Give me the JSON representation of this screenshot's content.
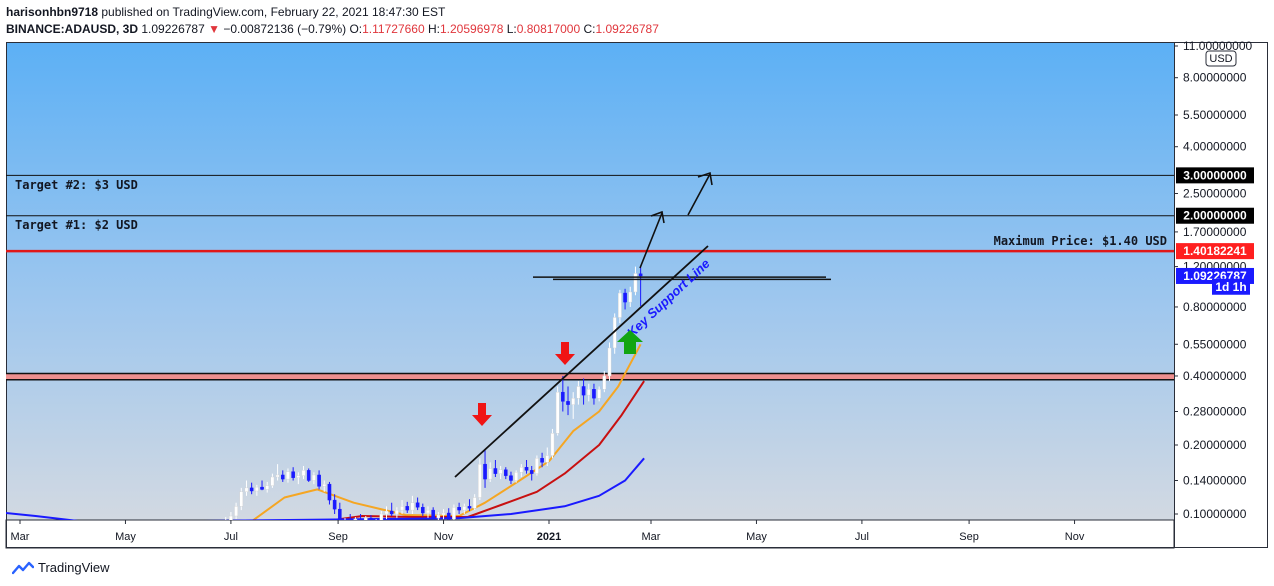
{
  "header": {
    "line1": {
      "user": "harisonhbn9718",
      "rest": " published on TradingView.com, February 22, 2021 18:47:30 EST"
    },
    "line2": {
      "symbol": "BINANCE:ADAUSD, 3D",
      "last": "1.09226787",
      "change": "−0.00872136 (−0.79%)",
      "o_label": "O:",
      "o": "1.11727660",
      "h_label": "H:",
      "h": "1.20596978",
      "l_label": "L:",
      "l": "0.80817000",
      "c_label": "C:",
      "c": "1.09226787"
    }
  },
  "footer": {
    "brand": "TradingView",
    "logo_icon": "tradingview-logo-icon"
  },
  "colors": {
    "red": "#e0363c",
    "blue": "#1a1aff",
    "orange": "#f5a623",
    "darkred": "#c81010",
    "green": "#16a016",
    "bgTop": "#60b2f2",
    "bgBottom": "#cfd8e4"
  },
  "chart_data": {
    "type": "candlestick",
    "y_scale": "log",
    "currency": "USD",
    "y_ticks": [
      "11.00000000",
      "8.00000000",
      "5.50000000",
      "4.00000000",
      "2.50000000",
      "1.70000000",
      "1.20000000",
      "0.80000000",
      "0.55000000",
      "0.40000000",
      "0.28000000",
      "0.20000000",
      "0.14000000",
      "0.10000000"
    ],
    "y_tick_values": [
      11,
      8,
      5.5,
      4,
      2.5,
      1.7,
      1.2,
      0.8,
      0.55,
      0.4,
      0.28,
      0.2,
      0.14,
      0.1
    ],
    "x_ticks": [
      "Mar",
      "May",
      "Jul",
      "Sep",
      "Nov",
      "2021",
      "Mar",
      "May",
      "Jul",
      "Sep",
      "Nov"
    ],
    "x_tick_dates": [
      "2020-03-01",
      "2020-05-01",
      "2020-07-01",
      "2020-09-01",
      "2020-11-01",
      "2021-01-01",
      "2021-03-01",
      "2021-05-01",
      "2021-07-01",
      "2021-09-01",
      "2021-11-01"
    ],
    "price_badges": [
      {
        "label": "3.00000000",
        "value": 3.0,
        "style": "black"
      },
      {
        "label": "2.00000000",
        "value": 2.0,
        "style": "black"
      },
      {
        "label": "1.40182241",
        "value": 1.40182241,
        "style": "red"
      },
      {
        "label": "1.09226787",
        "value": 1.09226787,
        "style": "blue"
      },
      {
        "label": "1d 1h",
        "value": 0.98,
        "style": "blue"
      }
    ],
    "annotations": [
      {
        "text": "Target #2: $3 USD",
        "value": 3.0
      },
      {
        "text": "Target #1: $2 USD",
        "value": 2.0
      },
      {
        "text": "Maximum Price: $1.40 USD",
        "value": 1.4
      },
      {
        "text": "Key Support Line"
      }
    ],
    "support_zone": [
      0.385,
      0.41
    ],
    "resistance_lines": [
      1.08,
      1.055
    ],
    "candles": [
      {
        "d": "2020-06-28",
        "o": 0.088,
        "h": 0.097,
        "l": 0.085,
        "c": 0.093
      },
      {
        "d": "2020-07-01",
        "o": 0.093,
        "h": 0.102,
        "l": 0.09,
        "c": 0.098
      },
      {
        "d": "2020-07-04",
        "o": 0.098,
        "h": 0.112,
        "l": 0.095,
        "c": 0.108
      },
      {
        "d": "2020-07-07",
        "o": 0.108,
        "h": 0.13,
        "l": 0.104,
        "c": 0.125
      },
      {
        "d": "2020-07-10",
        "o": 0.125,
        "h": 0.14,
        "l": 0.12,
        "c": 0.13
      },
      {
        "d": "2020-07-13",
        "o": 0.13,
        "h": 0.137,
        "l": 0.122,
        "c": 0.126
      },
      {
        "d": "2020-07-16",
        "o": 0.126,
        "h": 0.134,
        "l": 0.12,
        "c": 0.131
      },
      {
        "d": "2020-07-19",
        "o": 0.131,
        "h": 0.14,
        "l": 0.127,
        "c": 0.128
      },
      {
        "d": "2020-07-22",
        "o": 0.128,
        "h": 0.138,
        "l": 0.124,
        "c": 0.133
      },
      {
        "d": "2020-07-25",
        "o": 0.133,
        "h": 0.15,
        "l": 0.13,
        "c": 0.145
      },
      {
        "d": "2020-07-28",
        "o": 0.145,
        "h": 0.165,
        "l": 0.14,
        "c": 0.148
      },
      {
        "d": "2020-07-31",
        "o": 0.148,
        "h": 0.155,
        "l": 0.138,
        "c": 0.142
      },
      {
        "d": "2020-08-03",
        "o": 0.142,
        "h": 0.158,
        "l": 0.137,
        "c": 0.153
      },
      {
        "d": "2020-08-06",
        "o": 0.153,
        "h": 0.16,
        "l": 0.14,
        "c": 0.144
      },
      {
        "d": "2020-08-09",
        "o": 0.144,
        "h": 0.152,
        "l": 0.135,
        "c": 0.147
      },
      {
        "d": "2020-08-12",
        "o": 0.147,
        "h": 0.162,
        "l": 0.142,
        "c": 0.155
      },
      {
        "d": "2020-08-15",
        "o": 0.155,
        "h": 0.158,
        "l": 0.138,
        "c": 0.14
      },
      {
        "d": "2020-08-18",
        "o": 0.14,
        "h": 0.152,
        "l": 0.135,
        "c": 0.148
      },
      {
        "d": "2020-08-21",
        "o": 0.148,
        "h": 0.155,
        "l": 0.128,
        "c": 0.132
      },
      {
        "d": "2020-08-24",
        "o": 0.132,
        "h": 0.14,
        "l": 0.125,
        "c": 0.135
      },
      {
        "d": "2020-08-27",
        "o": 0.135,
        "h": 0.138,
        "l": 0.11,
        "c": 0.115
      },
      {
        "d": "2020-08-30",
        "o": 0.115,
        "h": 0.122,
        "l": 0.1,
        "c": 0.105
      },
      {
        "d": "2020-09-02",
        "o": 0.105,
        "h": 0.112,
        "l": 0.082,
        "c": 0.088
      },
      {
        "d": "2020-09-05",
        "o": 0.088,
        "h": 0.096,
        "l": 0.078,
        "c": 0.093
      },
      {
        "d": "2020-09-08",
        "o": 0.093,
        "h": 0.1,
        "l": 0.086,
        "c": 0.09
      },
      {
        "d": "2020-09-11",
        "o": 0.09,
        "h": 0.097,
        "l": 0.087,
        "c": 0.095
      },
      {
        "d": "2020-09-14",
        "o": 0.095,
        "h": 0.1,
        "l": 0.089,
        "c": 0.092
      },
      {
        "d": "2020-09-17",
        "o": 0.092,
        "h": 0.098,
        "l": 0.088,
        "c": 0.096
      },
      {
        "d": "2020-09-20",
        "o": 0.096,
        "h": 0.099,
        "l": 0.088,
        "c": 0.09
      },
      {
        "d": "2020-09-23",
        "o": 0.09,
        "h": 0.095,
        "l": 0.085,
        "c": 0.093
      },
      {
        "d": "2020-09-26",
        "o": 0.093,
        "h": 0.103,
        "l": 0.091,
        "c": 0.1
      },
      {
        "d": "2020-09-29",
        "o": 0.1,
        "h": 0.108,
        "l": 0.095,
        "c": 0.103
      },
      {
        "d": "2020-10-02",
        "o": 0.103,
        "h": 0.112,
        "l": 0.098,
        "c": 0.1
      },
      {
        "d": "2020-10-05",
        "o": 0.1,
        "h": 0.107,
        "l": 0.096,
        "c": 0.104
      },
      {
        "d": "2020-10-08",
        "o": 0.104,
        "h": 0.115,
        "l": 0.1,
        "c": 0.108
      },
      {
        "d": "2020-10-11",
        "o": 0.108,
        "h": 0.113,
        "l": 0.101,
        "c": 0.104
      },
      {
        "d": "2020-10-14",
        "o": 0.104,
        "h": 0.12,
        "l": 0.1,
        "c": 0.112
      },
      {
        "d": "2020-10-17",
        "o": 0.112,
        "h": 0.118,
        "l": 0.104,
        "c": 0.107
      },
      {
        "d": "2020-10-20",
        "o": 0.107,
        "h": 0.111,
        "l": 0.098,
        "c": 0.101
      },
      {
        "d": "2020-10-23",
        "o": 0.101,
        "h": 0.108,
        "l": 0.096,
        "c": 0.104
      },
      {
        "d": "2020-10-26",
        "o": 0.104,
        "h": 0.107,
        "l": 0.093,
        "c": 0.096
      },
      {
        "d": "2020-10-29",
        "o": 0.096,
        "h": 0.102,
        "l": 0.092,
        "c": 0.099
      },
      {
        "d": "2020-11-01",
        "o": 0.099,
        "h": 0.105,
        "l": 0.095,
        "c": 0.101
      },
      {
        "d": "2020-11-04",
        "o": 0.101,
        "h": 0.106,
        "l": 0.093,
        "c": 0.095
      },
      {
        "d": "2020-11-07",
        "o": 0.095,
        "h": 0.11,
        "l": 0.093,
        "c": 0.107
      },
      {
        "d": "2020-11-10",
        "o": 0.107,
        "h": 0.112,
        "l": 0.1,
        "c": 0.104
      },
      {
        "d": "2020-11-13",
        "o": 0.104,
        "h": 0.111,
        "l": 0.1,
        "c": 0.108
      },
      {
        "d": "2020-11-16",
        "o": 0.108,
        "h": 0.116,
        "l": 0.103,
        "c": 0.106
      },
      {
        "d": "2020-11-19",
        "o": 0.106,
        "h": 0.122,
        "l": 0.104,
        "c": 0.118
      },
      {
        "d": "2020-11-22",
        "o": 0.118,
        "h": 0.175,
        "l": 0.115,
        "c": 0.165
      },
      {
        "d": "2020-11-25",
        "o": 0.165,
        "h": 0.19,
        "l": 0.13,
        "c": 0.142
      },
      {
        "d": "2020-11-28",
        "o": 0.142,
        "h": 0.168,
        "l": 0.138,
        "c": 0.158
      },
      {
        "d": "2020-12-01",
        "o": 0.158,
        "h": 0.172,
        "l": 0.145,
        "c": 0.15
      },
      {
        "d": "2020-12-04",
        "o": 0.15,
        "h": 0.162,
        "l": 0.142,
        "c": 0.156
      },
      {
        "d": "2020-12-07",
        "o": 0.156,
        "h": 0.16,
        "l": 0.142,
        "c": 0.147
      },
      {
        "d": "2020-12-10",
        "o": 0.147,
        "h": 0.153,
        "l": 0.135,
        "c": 0.14
      },
      {
        "d": "2020-12-13",
        "o": 0.14,
        "h": 0.155,
        "l": 0.137,
        "c": 0.152
      },
      {
        "d": "2020-12-16",
        "o": 0.152,
        "h": 0.165,
        "l": 0.145,
        "c": 0.16
      },
      {
        "d": "2020-12-19",
        "o": 0.16,
        "h": 0.172,
        "l": 0.15,
        "c": 0.155
      },
      {
        "d": "2020-12-22",
        "o": 0.155,
        "h": 0.162,
        "l": 0.14,
        "c": 0.15
      },
      {
        "d": "2020-12-25",
        "o": 0.15,
        "h": 0.18,
        "l": 0.147,
        "c": 0.175
      },
      {
        "d": "2020-12-28",
        "o": 0.175,
        "h": 0.185,
        "l": 0.16,
        "c": 0.168
      },
      {
        "d": "2020-12-31",
        "o": 0.168,
        "h": 0.195,
        "l": 0.162,
        "c": 0.18
      },
      {
        "d": "2021-01-03",
        "o": 0.18,
        "h": 0.235,
        "l": 0.175,
        "c": 0.225
      },
      {
        "d": "2021-01-06",
        "o": 0.225,
        "h": 0.36,
        "l": 0.22,
        "c": 0.34
      },
      {
        "d": "2021-01-09",
        "o": 0.34,
        "h": 0.4,
        "l": 0.28,
        "c": 0.31
      },
      {
        "d": "2021-01-12",
        "o": 0.31,
        "h": 0.36,
        "l": 0.27,
        "c": 0.3
      },
      {
        "d": "2021-01-15",
        "o": 0.3,
        "h": 0.34,
        "l": 0.26,
        "c": 0.32
      },
      {
        "d": "2021-01-18",
        "o": 0.32,
        "h": 0.38,
        "l": 0.3,
        "c": 0.36
      },
      {
        "d": "2021-01-21",
        "o": 0.36,
        "h": 0.39,
        "l": 0.3,
        "c": 0.33
      },
      {
        "d": "2021-01-24",
        "o": 0.33,
        "h": 0.37,
        "l": 0.31,
        "c": 0.35
      },
      {
        "d": "2021-01-27",
        "o": 0.35,
        "h": 0.37,
        "l": 0.3,
        "c": 0.32
      },
      {
        "d": "2021-01-30",
        "o": 0.32,
        "h": 0.36,
        "l": 0.31,
        "c": 0.35
      },
      {
        "d": "2021-02-02",
        "o": 0.35,
        "h": 0.42,
        "l": 0.34,
        "c": 0.4
      },
      {
        "d": "2021-02-05",
        "o": 0.4,
        "h": 0.56,
        "l": 0.38,
        "c": 0.53
      },
      {
        "d": "2021-02-08",
        "o": 0.53,
        "h": 0.75,
        "l": 0.5,
        "c": 0.72
      },
      {
        "d": "2021-02-11",
        "o": 0.72,
        "h": 0.95,
        "l": 0.68,
        "c": 0.92
      },
      {
        "d": "2021-02-14",
        "o": 0.92,
        "h": 0.96,
        "l": 0.78,
        "c": 0.84
      },
      {
        "d": "2021-02-17",
        "o": 0.84,
        "h": 0.98,
        "l": 0.8,
        "c": 0.93
      },
      {
        "d": "2021-02-20",
        "o": 0.93,
        "h": 1.2,
        "l": 0.9,
        "c": 1.12
      },
      {
        "d": "2021-02-23",
        "o": 1.117,
        "h": 1.206,
        "l": 0.808,
        "c": 1.092
      }
    ],
    "moving_averages": [
      {
        "color": "orange",
        "points": [
          [
            "2020-07-05",
            0.084
          ],
          [
            "2020-08-01",
            0.118
          ],
          [
            "2020-08-20",
            0.128
          ],
          [
            "2020-09-10",
            0.112
          ],
          [
            "2020-10-10",
            0.099
          ],
          [
            "2020-11-10",
            0.098
          ],
          [
            "2020-11-25",
            0.112
          ],
          [
            "2020-12-15",
            0.14
          ],
          [
            "2021-01-01",
            0.17
          ],
          [
            "2021-01-15",
            0.23
          ],
          [
            "2021-01-30",
            0.28
          ],
          [
            "2021-02-10",
            0.36
          ],
          [
            "2021-02-23",
            0.55
          ]
        ]
      },
      {
        "color": "darkred",
        "points": [
          [
            "2020-08-20",
            0.092
          ],
          [
            "2020-09-15",
            0.098
          ],
          [
            "2020-10-15",
            0.097
          ],
          [
            "2020-11-15",
            0.097
          ],
          [
            "2020-12-05",
            0.11
          ],
          [
            "2020-12-25",
            0.125
          ],
          [
            "2021-01-10",
            0.15
          ],
          [
            "2021-01-30",
            0.2
          ],
          [
            "2021-02-12",
            0.27
          ],
          [
            "2021-02-25",
            0.38
          ]
        ]
      },
      {
        "color": "blue",
        "points": [
          [
            "2020-01-15",
            0.108
          ],
          [
            "2020-03-10",
            0.098
          ],
          [
            "2020-04-10",
            0.092
          ],
          [
            "2020-11-10",
            0.096
          ],
          [
            "2020-12-10",
            0.1
          ],
          [
            "2021-01-10",
            0.108
          ],
          [
            "2021-01-30",
            0.12
          ],
          [
            "2021-02-14",
            0.14
          ],
          [
            "2021-02-25",
            0.175
          ]
        ]
      }
    ]
  }
}
